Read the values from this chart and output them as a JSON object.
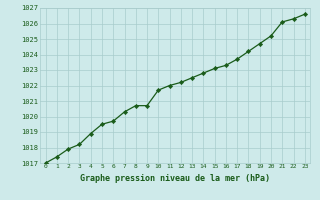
{
  "x": [
    0,
    1,
    2,
    3,
    4,
    5,
    6,
    7,
    8,
    9,
    10,
    11,
    12,
    13,
    14,
    15,
    16,
    17,
    18,
    19,
    20,
    21,
    22,
    23
  ],
  "y": [
    1017.0,
    1017.4,
    1017.9,
    1018.2,
    1018.9,
    1019.5,
    1019.7,
    1020.3,
    1020.7,
    1020.7,
    1021.7,
    1022.0,
    1022.2,
    1022.5,
    1022.8,
    1023.1,
    1023.3,
    1023.7,
    1024.2,
    1024.7,
    1025.2,
    1026.1,
    1026.3,
    1026.6
  ],
  "ylim": [
    1017,
    1027
  ],
  "xlim": [
    -0.5,
    23.5
  ],
  "yticks": [
    1017,
    1018,
    1019,
    1020,
    1021,
    1022,
    1023,
    1024,
    1025,
    1026,
    1027
  ],
  "xticks": [
    0,
    1,
    2,
    3,
    4,
    5,
    6,
    7,
    8,
    9,
    10,
    11,
    12,
    13,
    14,
    15,
    16,
    17,
    18,
    19,
    20,
    21,
    22,
    23
  ],
  "xlabel": "Graphe pression niveau de la mer (hPa)",
  "line_color": "#1a5c1a",
  "marker": "D",
  "marker_size": 2.2,
  "bg_color": "#ceeaea",
  "grid_color": "#a8cccc",
  "tick_label_color": "#1a5c1a",
  "xlabel_color": "#1a5c1a",
  "line_width": 0.9
}
